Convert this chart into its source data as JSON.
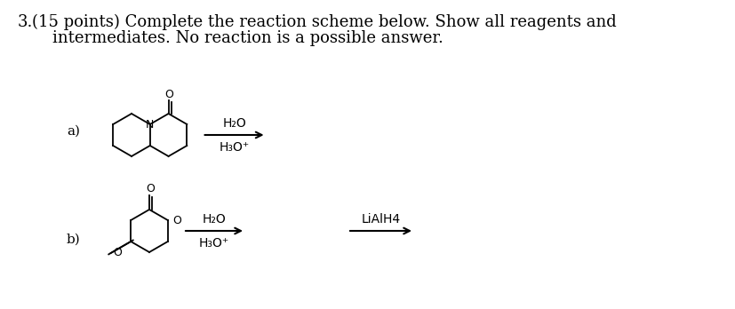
{
  "background_color": "#ffffff",
  "title_number": "3.",
  "title_text": "(15 points) Complete the reaction scheme below. Show all reagents and",
  "title_text2": "    intermediates. No reaction is a possible answer.",
  "label_a": "a)",
  "label_b": "b)",
  "reagent_a_top": "H₂O",
  "reagent_a_bot": "H₃O⁺",
  "reagent_b_top": "H₂O",
  "reagent_b_bot": "H₃O⁺",
  "reagent_b2": "LiAlH4",
  "font_size_title": 13,
  "font_size_label": 11,
  "font_size_reagent": 10,
  "font_size_atom": 9
}
